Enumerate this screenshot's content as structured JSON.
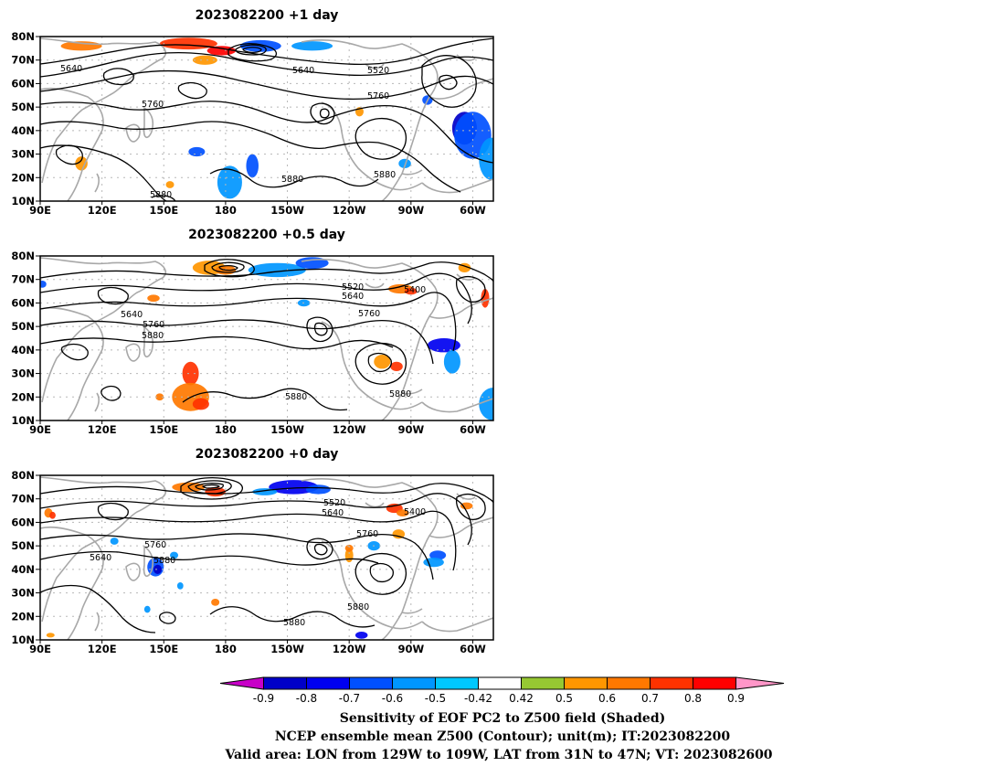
{
  "panels": [
    {
      "title": "2023082200  +1 day",
      "contour_labels": [
        "5640",
        "5640",
        "5520",
        "5760",
        "5760",
        "5880",
        "5880",
        "5880"
      ],
      "shading": [
        {
          "lon": 110,
          "lat": 76,
          "rx": 10,
          "ry": 2,
          "value": 0.6
        },
        {
          "lon": 162,
          "lat": 77,
          "rx": 14,
          "ry": 2.5,
          "value": 0.7
        },
        {
          "lon": 178,
          "lat": 74,
          "rx": 7,
          "ry": 2,
          "value": 0.8
        },
        {
          "lon": 197,
          "lat": 76,
          "rx": 10,
          "ry": 2.5,
          "value": -0.6
        },
        {
          "lon": 222,
          "lat": 76,
          "rx": 10,
          "ry": 2,
          "value": -0.5
        },
        {
          "lon": 170,
          "lat": 70,
          "rx": 6,
          "ry": 2,
          "value": 0.5
        },
        {
          "lon": 296,
          "lat": 41,
          "rx": 6,
          "ry": 7,
          "value": -0.8
        },
        {
          "lon": 300,
          "lat": 38,
          "rx": 9,
          "ry": 10,
          "value": -0.6
        },
        {
          "lon": 309,
          "lat": 28,
          "rx": 6,
          "ry": 9,
          "value": -0.5
        },
        {
          "lon": 278,
          "lat": 53,
          "rx": 2.5,
          "ry": 2,
          "value": -0.6
        },
        {
          "lon": 193,
          "lat": 25,
          "rx": 3,
          "ry": 5,
          "value": -0.6
        },
        {
          "lon": 182,
          "lat": 18,
          "rx": 6,
          "ry": 7,
          "value": -0.5
        },
        {
          "lon": 166,
          "lat": 31,
          "rx": 4,
          "ry": 2,
          "value": -0.6
        },
        {
          "lon": 110,
          "lat": 26,
          "rx": 3,
          "ry": 3,
          "value": 0.5
        },
        {
          "lon": 267,
          "lat": 26,
          "rx": 3,
          "ry": 2,
          "value": -0.5
        },
        {
          "lon": 245,
          "lat": 48,
          "rx": 2,
          "ry": 2,
          "value": 0.5
        },
        {
          "lon": 153,
          "lat": 17,
          "rx": 2,
          "ry": 1.5,
          "value": 0.5
        }
      ]
    },
    {
      "title": "2023082200  +0.5 day",
      "contour_labels": [
        "5640",
        "5760",
        "5880",
        "5520",
        "5640",
        "5400",
        "5760",
        "5880",
        "5880"
      ],
      "shading": [
        {
          "lon": 172,
          "lat": 75,
          "rx": 8,
          "ry": 3,
          "value": 0.5
        },
        {
          "lon": 180,
          "lat": 74,
          "rx": 5,
          "ry": 2,
          "value": 0.6
        },
        {
          "lon": 205,
          "lat": 74,
          "rx": 14,
          "ry": 3,
          "value": -0.5
        },
        {
          "lon": 222,
          "lat": 77,
          "rx": 8,
          "ry": 2.5,
          "value": -0.6
        },
        {
          "lon": 265,
          "lat": 66,
          "rx": 6,
          "ry": 2,
          "value": 0.6
        },
        {
          "lon": 270,
          "lat": 65,
          "rx": 3,
          "ry": 1.5,
          "value": 0.7
        },
        {
          "lon": 296,
          "lat": 75,
          "rx": 3,
          "ry": 2,
          "value": 0.5
        },
        {
          "lon": 306,
          "lat": 62,
          "rx": 2,
          "ry": 4,
          "value": 0.7
        },
        {
          "lon": 256,
          "lat": 35,
          "rx": 4,
          "ry": 3,
          "value": 0.5
        },
        {
          "lon": 263,
          "lat": 33,
          "rx": 3,
          "ry": 2,
          "value": 0.7
        },
        {
          "lon": 286,
          "lat": 42,
          "rx": 8,
          "ry": 3,
          "value": -0.7
        },
        {
          "lon": 290,
          "lat": 35,
          "rx": 4,
          "ry": 5,
          "value": -0.5
        },
        {
          "lon": 310,
          "lat": 17,
          "rx": 7,
          "ry": 7,
          "value": -0.5
        },
        {
          "lon": 163,
          "lat": 30,
          "rx": 4,
          "ry": 5,
          "value": 0.7
        },
        {
          "lon": 163,
          "lat": 20,
          "rx": 9,
          "ry": 6,
          "value": 0.6
        },
        {
          "lon": 168,
          "lat": 17,
          "rx": 4,
          "ry": 2.5,
          "value": 0.7
        },
        {
          "lon": 148,
          "lat": 20,
          "rx": 2,
          "ry": 1.5,
          "value": 0.6
        },
        {
          "lon": 145,
          "lat": 62,
          "rx": 3,
          "ry": 1.5,
          "value": 0.6
        },
        {
          "lon": 91,
          "lat": 68,
          "rx": 2,
          "ry": 1.5,
          "value": -0.6
        },
        {
          "lon": 218,
          "lat": 60,
          "rx": 3,
          "ry": 1.5,
          "value": -0.5
        }
      ]
    },
    {
      "title": "2023082200  +0 day",
      "contour_labels": [
        "5640",
        "5760",
        "5880",
        "5520",
        "5640",
        "5400",
        "5760",
        "5880",
        "5880"
      ],
      "shading": [
        {
          "lon": 162,
          "lat": 75,
          "rx": 8,
          "ry": 2,
          "value": 0.6
        },
        {
          "lon": 175,
          "lat": 73,
          "rx": 5,
          "ry": 2,
          "value": 0.7
        },
        {
          "lon": 213,
          "lat": 75,
          "rx": 12,
          "ry": 3,
          "value": -0.7
        },
        {
          "lon": 225,
          "lat": 74,
          "rx": 6,
          "ry": 2,
          "value": -0.6
        },
        {
          "lon": 199,
          "lat": 73,
          "rx": 6,
          "ry": 1.5,
          "value": -0.5
        },
        {
          "lon": 262,
          "lat": 66,
          "rx": 4,
          "ry": 2,
          "value": 0.7
        },
        {
          "lon": 266,
          "lat": 64,
          "rx": 3,
          "ry": 1.5,
          "value": 0.6
        },
        {
          "lon": 297,
          "lat": 67,
          "rx": 3,
          "ry": 1.5,
          "value": 0.6
        },
        {
          "lon": 264,
          "lat": 55,
          "rx": 3,
          "ry": 2,
          "value": 0.5
        },
        {
          "lon": 283,
          "lat": 46,
          "rx": 4,
          "ry": 2,
          "value": -0.6
        },
        {
          "lon": 281,
          "lat": 43,
          "rx": 5,
          "ry": 2,
          "value": -0.5
        },
        {
          "lon": 146,
          "lat": 41,
          "rx": 4,
          "ry": 4,
          "value": -0.6
        },
        {
          "lon": 147,
          "lat": 40,
          "rx": 2,
          "ry": 2,
          "value": -0.8
        },
        {
          "lon": 155,
          "lat": 46,
          "rx": 2,
          "ry": 1.5,
          "value": -0.5
        },
        {
          "lon": 240,
          "lat": 46,
          "rx": 2,
          "ry": 3,
          "value": 0.5
        },
        {
          "lon": 240,
          "lat": 49,
          "rx": 2,
          "ry": 1.5,
          "value": 0.6
        },
        {
          "lon": 252,
          "lat": 50,
          "rx": 3,
          "ry": 2,
          "value": -0.5
        },
        {
          "lon": 94,
          "lat": 64,
          "rx": 2,
          "ry": 2,
          "value": 0.6
        },
        {
          "lon": 96,
          "lat": 63,
          "rx": 1.5,
          "ry": 1.5,
          "value": 0.7
        },
        {
          "lon": 126,
          "lat": 52,
          "rx": 2,
          "ry": 1.5,
          "value": -0.5
        },
        {
          "lon": 246,
          "lat": 12,
          "rx": 3,
          "ry": 1.5,
          "value": -0.7
        },
        {
          "lon": 175,
          "lat": 26,
          "rx": 2,
          "ry": 1.5,
          "value": 0.6
        },
        {
          "lon": 142,
          "lat": 23,
          "rx": 1.5,
          "ry": 1.5,
          "value": -0.5
        },
        {
          "lon": 158,
          "lat": 33,
          "rx": 1.5,
          "ry": 1.5,
          "value": -0.5
        },
        {
          "lon": 95,
          "lat": 12,
          "rx": 2,
          "ry": 1,
          "value": 0.5
        }
      ]
    }
  ],
  "axis": {
    "lat_ticks": [
      "80N",
      "70N",
      "60N",
      "50N",
      "40N",
      "30N",
      "20N",
      "10N"
    ],
    "lon_ticks": [
      "90E",
      "120E",
      "150E",
      "180",
      "150W",
      "120W",
      "90W",
      "60W"
    ]
  },
  "colorbar": {
    "tick_labels": [
      "-0.9",
      "-0.8",
      "-0.7",
      "-0.6",
      "-0.5",
      "-0.42",
      "0.42",
      "0.5",
      "0.6",
      "0.7",
      "0.8",
      "0.9"
    ],
    "colors": [
      "#c800c8",
      "#0000c8",
      "#0000f0",
      "#0050ff",
      "#0096ff",
      "#00c8ff",
      "#ffffff",
      "#96c832",
      "#ff9600",
      "#ff7800",
      "#ff3200",
      "#ff0000",
      "#ff96c8"
    ]
  },
  "caption": {
    "line1": "Sensitivity of EOF PC2 to Z500 field (Shaded)",
    "line2": "NCEP ensemble mean Z500 (Contour); unit(m); IT:2023082200",
    "line3": "Valid area: LON from 129W to 109W, LAT from 31N to 47N; VT: 2023082600"
  }
}
